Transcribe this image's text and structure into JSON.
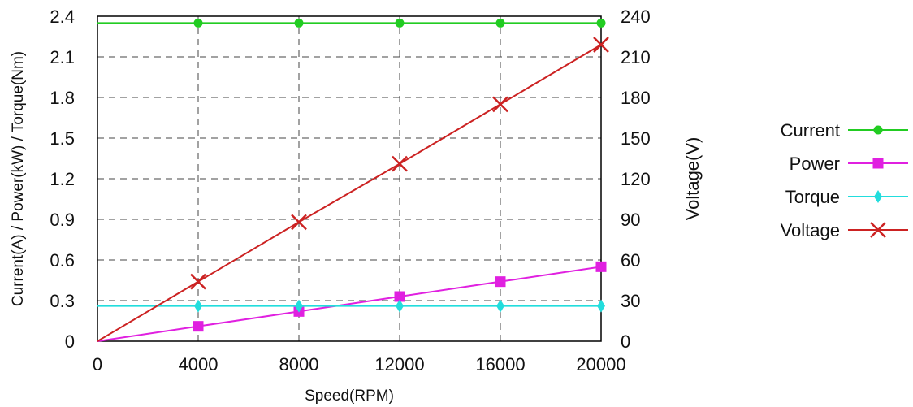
{
  "chart_data": {
    "type": "line",
    "x": [
      0,
      4000,
      8000,
      12000,
      16000,
      20000
    ],
    "xlabel": "Speed(RPM)",
    "xlim": [
      0,
      20000
    ],
    "xticks": [
      "0",
      "4000",
      "8000",
      "12000",
      "16000",
      "20000"
    ],
    "ylabel_left": "Current(A) / Power(kW) / Torque(Nm)",
    "ylim_left": [
      0,
      2.4
    ],
    "yticks_left": [
      "0",
      "0.3",
      "0.6",
      "0.9",
      "1.2",
      "1.5",
      "1.8",
      "2.1",
      "2.4"
    ],
    "ylabel_right": "Voltage(V)",
    "ylim_right": [
      0,
      240
    ],
    "yticks_right": [
      "0",
      "30",
      "60",
      "90",
      "120",
      "150",
      "180",
      "210",
      "240"
    ],
    "grid": "dashed",
    "legend_position": "right",
    "series": [
      {
        "name": "Current",
        "axis": "left",
        "color": "#22cc22",
        "marker": "circle",
        "values": [
          2.35,
          2.35,
          2.35,
          2.35,
          2.35,
          2.35
        ],
        "marker_from": 1
      },
      {
        "name": "Power",
        "axis": "left",
        "color": "#e020e0",
        "marker": "square",
        "values": [
          0,
          0.11,
          0.22,
          0.33,
          0.44,
          0.55
        ],
        "marker_from": 1
      },
      {
        "name": "Torque",
        "axis": "left",
        "color": "#22dddd",
        "marker": "diamond",
        "values": [
          0.26,
          0.26,
          0.26,
          0.26,
          0.26,
          0.26
        ],
        "marker_from": 1
      },
      {
        "name": "Voltage",
        "axis": "right",
        "color": "#cc2222",
        "marker": "x",
        "values": [
          0,
          44,
          88,
          131,
          175,
          219
        ],
        "marker_from": 1
      }
    ]
  }
}
